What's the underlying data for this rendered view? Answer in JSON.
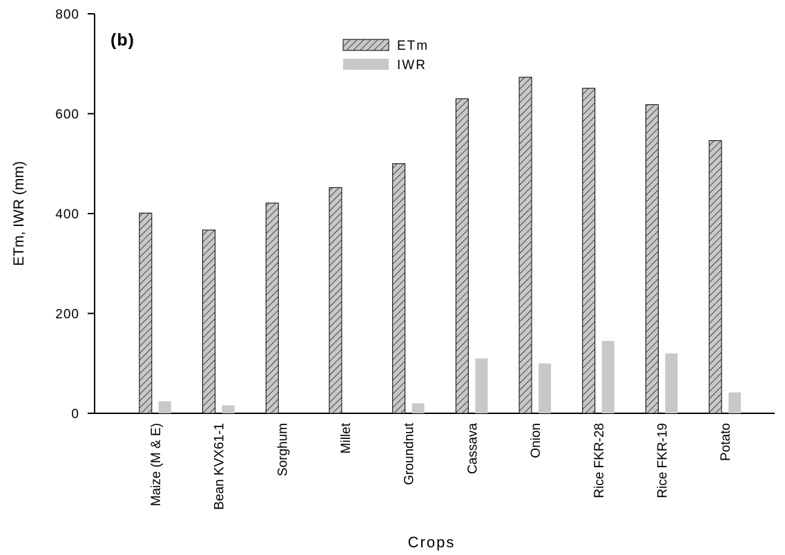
{
  "chart_data": {
    "type": "bar",
    "annotation": "(b)",
    "x_label": "Crops",
    "y_label": "ETm, IWR (mm)",
    "categories": [
      "Maize (M & E)",
      "Bean KVX61-1",
      "Sorghum",
      "Millet",
      "Groundnut",
      "Cassava",
      "Onion",
      "Rice FKR-28",
      "Rice FKR-19",
      "Potato"
    ],
    "series": [
      {
        "name": "ETm",
        "color": "#c8c8c8",
        "hatch": true,
        "values": [
          401,
          367,
          421,
          452,
          500,
          630,
          673,
          651,
          618,
          546
        ]
      },
      {
        "name": "IWR",
        "color": "#c8c8c8",
        "hatch": false,
        "values": [
          24,
          16,
          0,
          0,
          20,
          110,
          100,
          145,
          120,
          42
        ]
      }
    ],
    "ylim": [
      0,
      800
    ],
    "yticks": [
      0,
      200,
      400,
      600,
      800
    ],
    "grid": false
  }
}
